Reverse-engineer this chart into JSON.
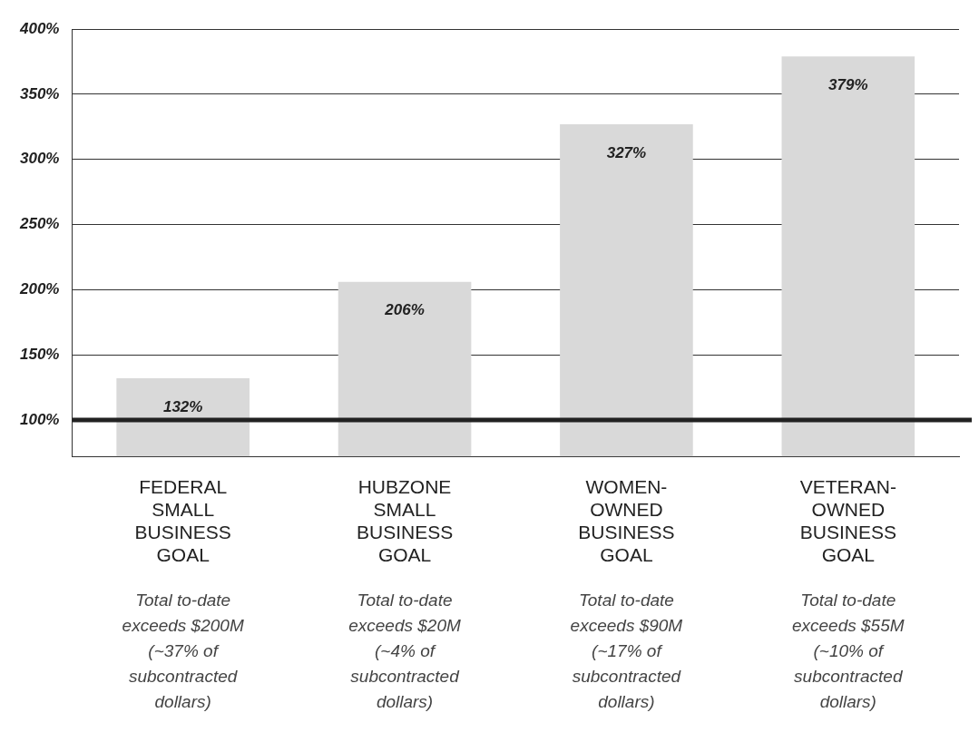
{
  "chart_data": {
    "type": "bar",
    "categories": [
      "FEDERAL SMALL BUSINESS GOAL",
      "HUBZONE SMALL BUSINESS GOAL",
      "WOMEN-OWNED BUSINESS GOAL",
      "VETERAN-OWNED BUSINESS GOAL"
    ],
    "values": [
      132,
      206,
      327,
      379
    ],
    "color": "#d9d9d9",
    "ylim": [
      72,
      400
    ],
    "yticks": [
      {
        "value": 100,
        "label": "100%"
      },
      {
        "value": 150,
        "label": "150%"
      },
      {
        "value": 200,
        "label": "200%"
      },
      {
        "value": 250,
        "label": "250%"
      },
      {
        "value": 300,
        "label": "300%"
      },
      {
        "value": 350,
        "label": "350%"
      },
      {
        "value": 400,
        "label": "400%"
      }
    ],
    "value_labels": [
      "132%",
      "206%",
      "327%",
      "379%"
    ],
    "grid": "y",
    "legend": false,
    "ref_lines": [
      {
        "axis": "y",
        "value": 100,
        "color": "#222222"
      }
    ],
    "annotations": [
      "Total to-date exceeds $200M (~37% of subcontracted dollars)",
      "Total to-date exceeds $20M (~4% of subcontracted dollars)",
      "Total to-date exceeds $90M (~17% of subcontracted dollars)",
      "Total to-date exceeds $55M (~10% of subcontracted dollars)"
    ]
  }
}
